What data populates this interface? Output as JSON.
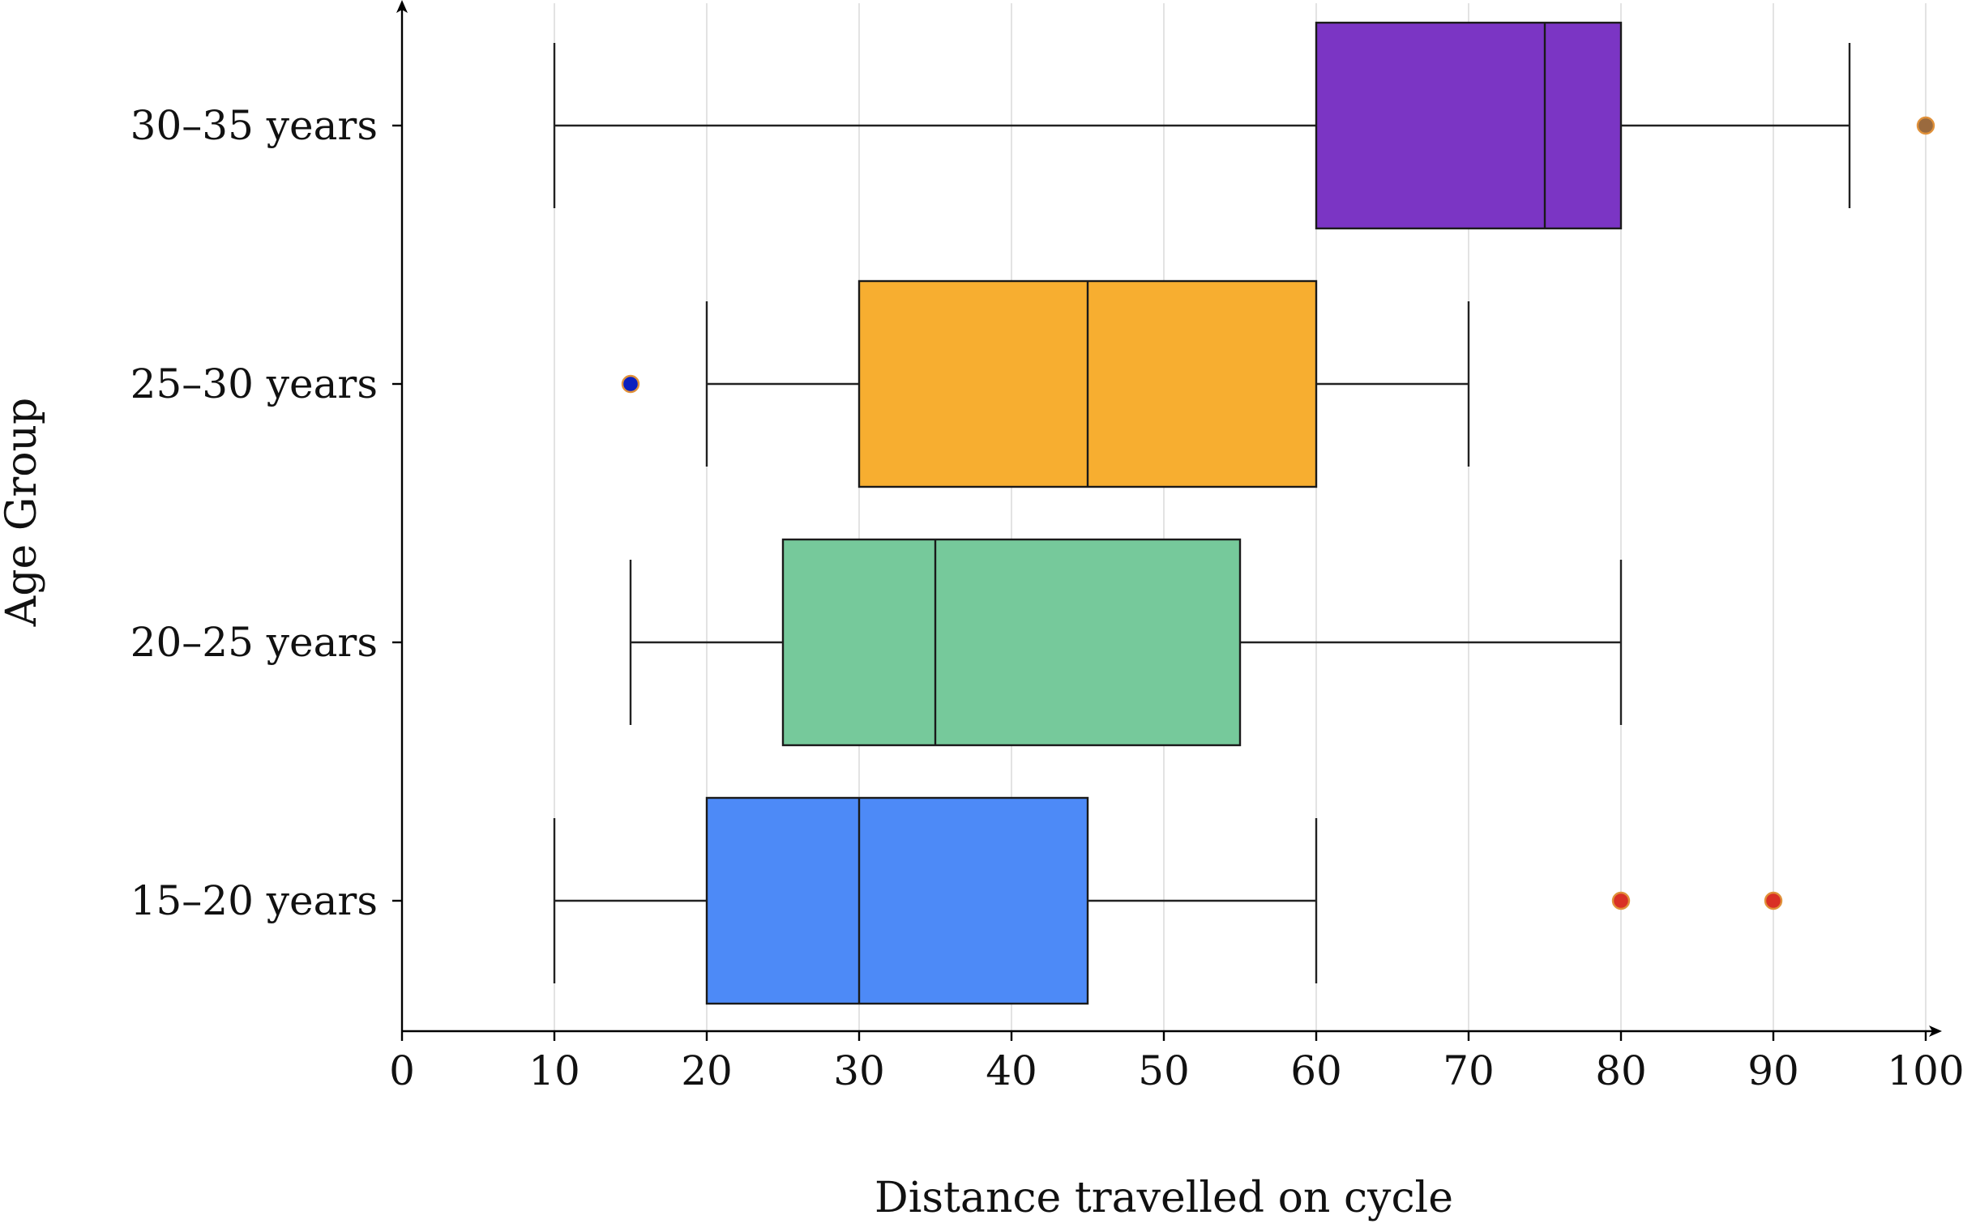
{
  "chart_data": {
    "type": "boxplot",
    "orientation": "horizontal",
    "xlabel": "Distance travelled on cycle",
    "ylabel": "Age Group",
    "xlim": [
      0,
      100
    ],
    "xticks": [
      0,
      10,
      20,
      30,
      40,
      50,
      60,
      70,
      80,
      90,
      100
    ],
    "grid": "vertical",
    "categories": [
      "15–20 years",
      "20–25 years",
      "25–30 years",
      "30–35 years"
    ],
    "boxes": [
      {
        "category": "15–20 years",
        "whisker_low": 10,
        "q1": 20,
        "median": 30,
        "q3": 45,
        "whisker_high": 60,
        "outliers": [
          80,
          90
        ],
        "color": "#4d8af7",
        "outlier_color": "#d93025"
      },
      {
        "category": "20–25 years",
        "whisker_low": 15,
        "q1": 25,
        "median": 35,
        "q3": 55,
        "whisker_high": 80,
        "outliers": [],
        "color": "#76c99b",
        "outlier_color": "#d93025"
      },
      {
        "category": "25–30 years",
        "whisker_low": 20,
        "q1": 30,
        "median": 45,
        "q3": 60,
        "whisker_high": 70,
        "outliers": [
          15
        ],
        "color": "#f7ae30",
        "outlier_color": "#0a1fbf"
      },
      {
        "category": "30–35 years",
        "whisker_low": 10,
        "q1": 60,
        "median": 75,
        "q3": 80,
        "whisker_high": 95,
        "outliers": [
          100
        ],
        "color": "#7b35c4",
        "outlier_color": "#9a6a3e"
      }
    ]
  }
}
